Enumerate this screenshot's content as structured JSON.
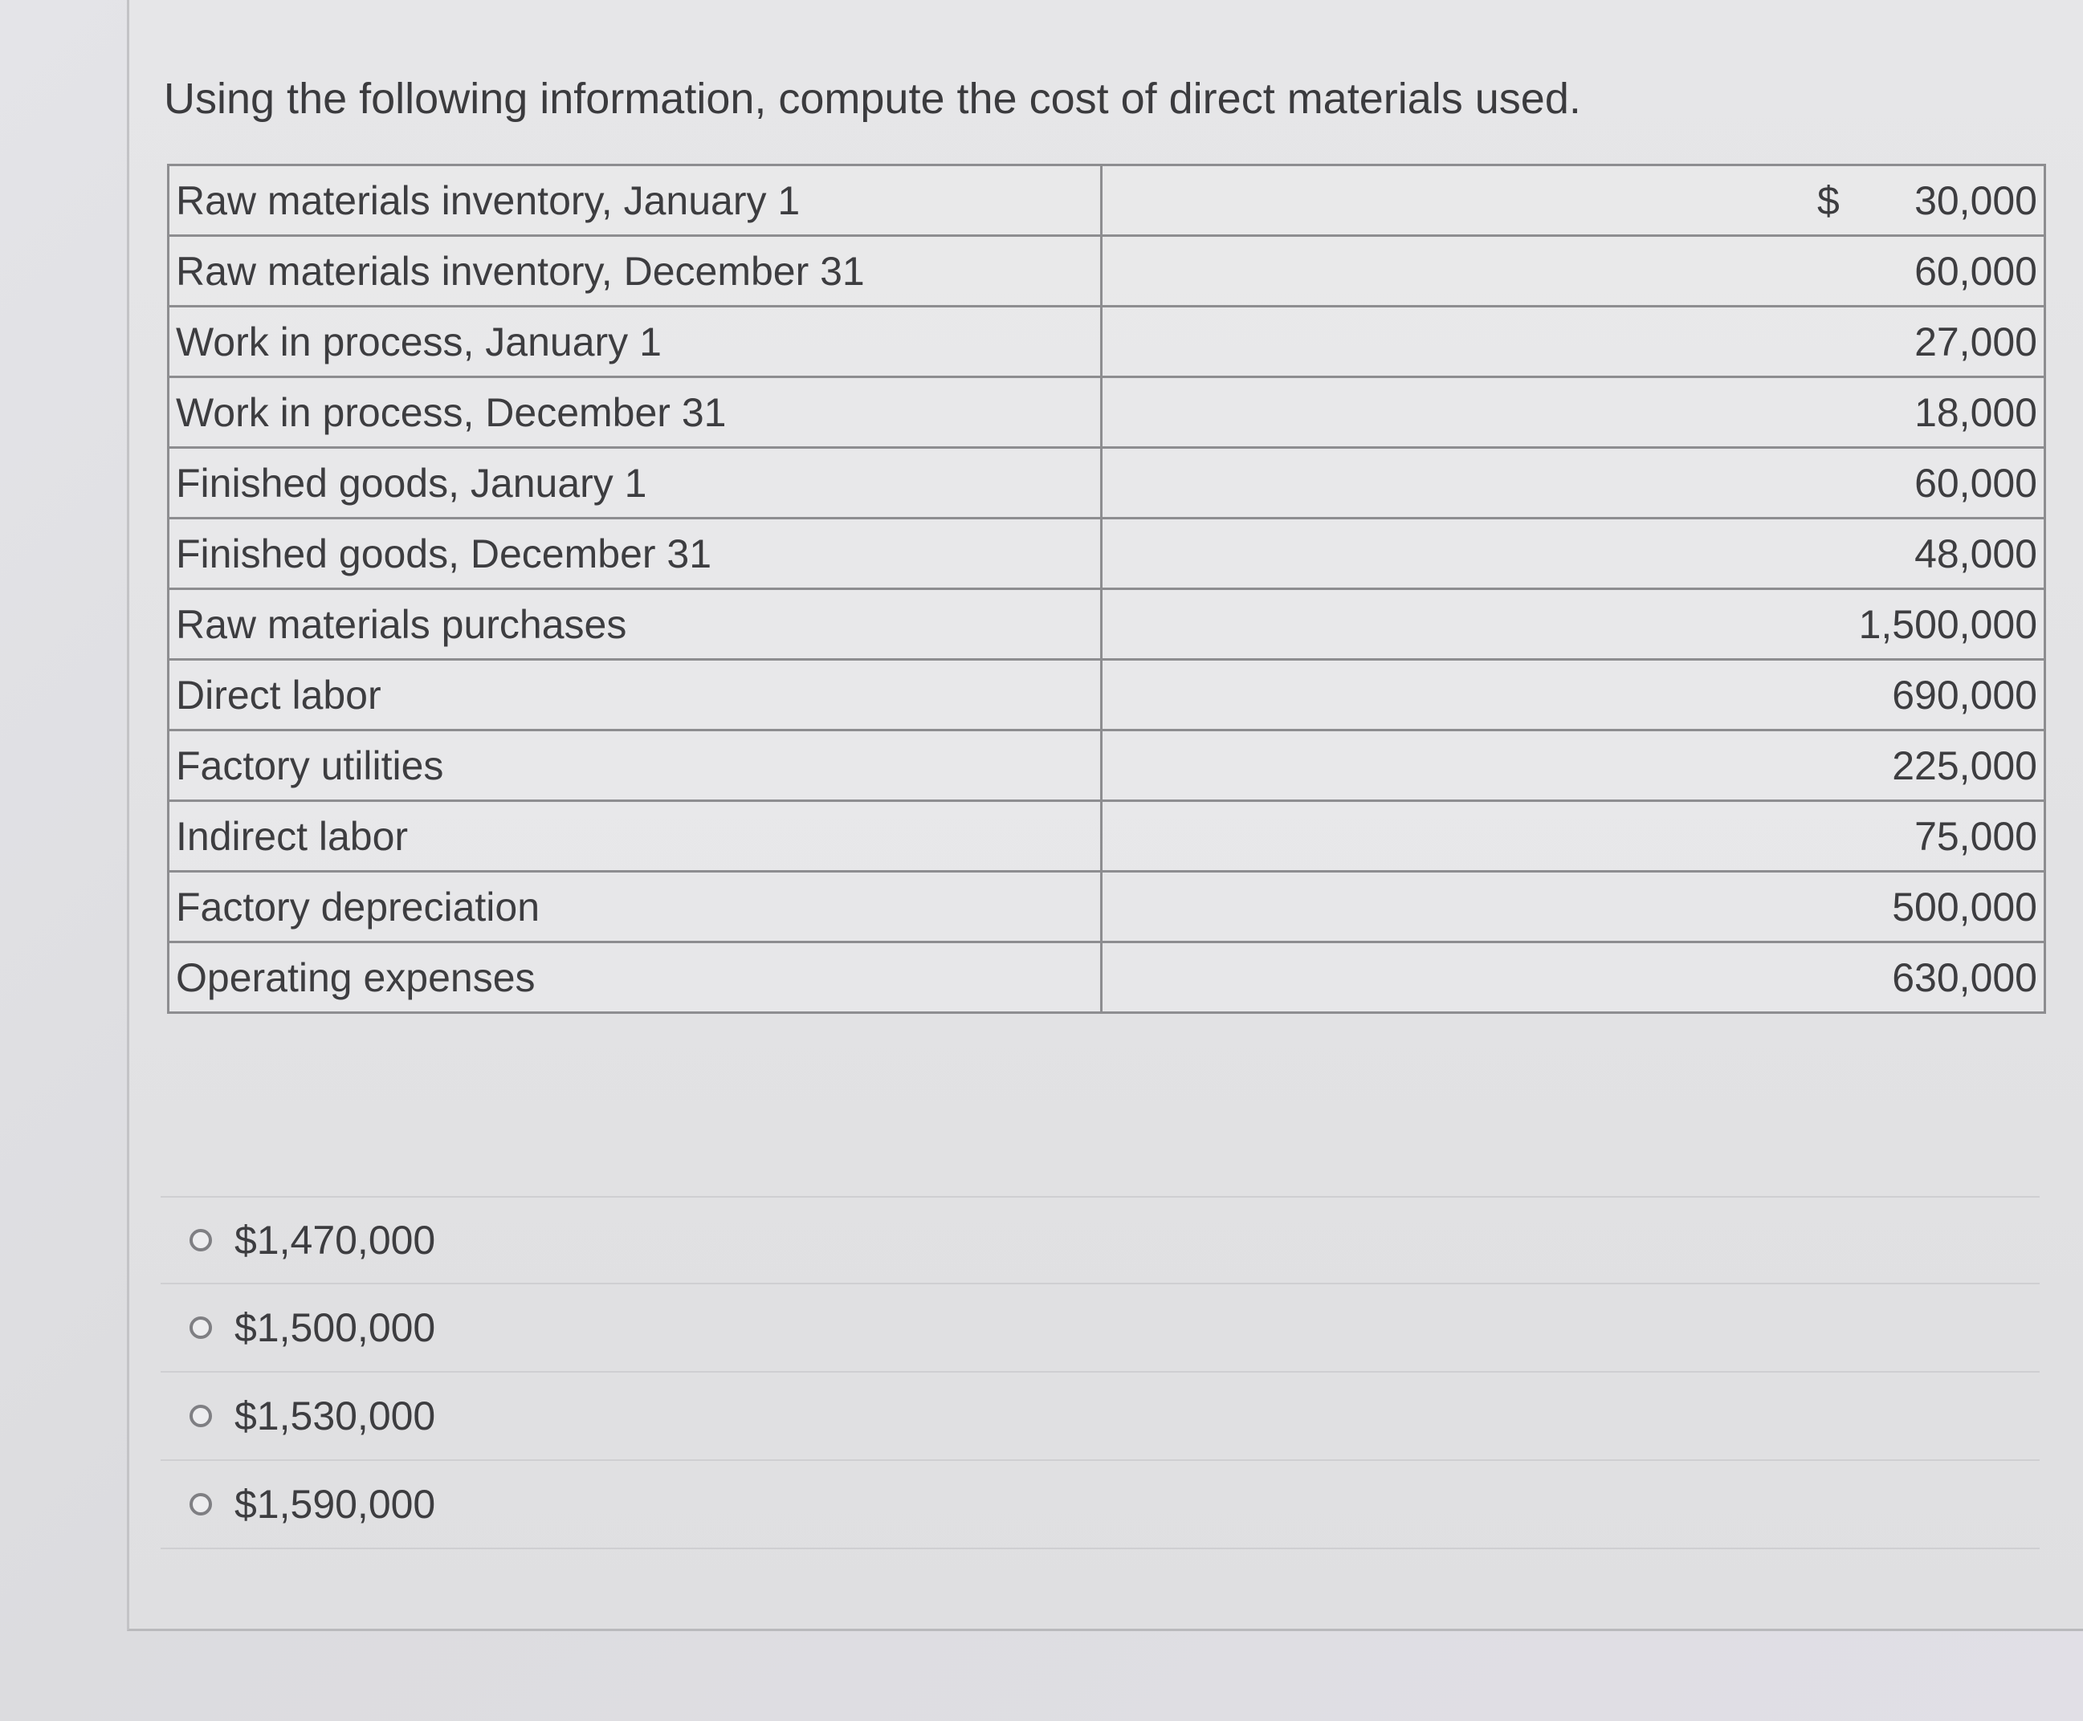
{
  "question": {
    "text": "Using the following information, compute the cost of direct materials used."
  },
  "table": {
    "currency_symbol": "$",
    "rows": [
      {
        "label": "Raw materials inventory, January 1",
        "value": "30,000"
      },
      {
        "label": "Raw materials inventory, December 31",
        "value": "60,000"
      },
      {
        "label": "Work in process, January 1",
        "value": "27,000"
      },
      {
        "label": "Work in process, December 31",
        "value": "18,000"
      },
      {
        "label": "Finished goods, January 1",
        "value": "60,000"
      },
      {
        "label": "Finished goods, December 31",
        "value": "48,000"
      },
      {
        "label": "Raw materials purchases",
        "value": "1,500,000"
      },
      {
        "label": "Direct labor",
        "value": "690,000"
      },
      {
        "label": "Factory utilities",
        "value": "225,000"
      },
      {
        "label": "Indirect labor",
        "value": "75,000"
      },
      {
        "label": "Factory depreciation",
        "value": "500,000"
      },
      {
        "label": "Operating expenses",
        "value": "630,000"
      }
    ]
  },
  "answers": {
    "options": [
      {
        "label": "$1,470,000"
      },
      {
        "label": "$1,500,000"
      },
      {
        "label": "$1,530,000"
      },
      {
        "label": "$1,590,000"
      }
    ]
  },
  "colors": {
    "text": "#3d3d40",
    "border": "#8d8d90",
    "background": "#e2e2e4"
  }
}
